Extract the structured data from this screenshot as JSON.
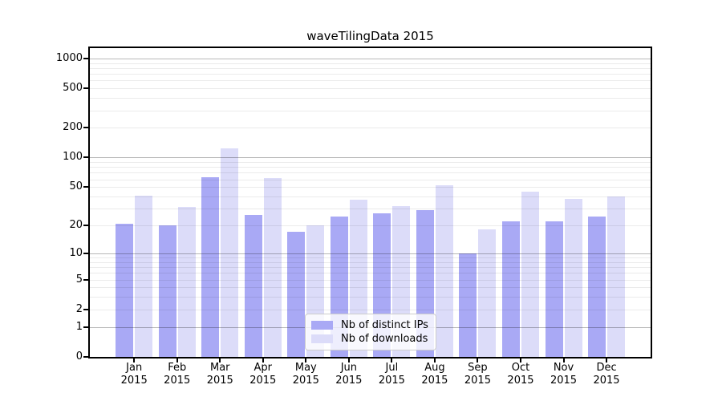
{
  "chart_data": {
    "type": "bar",
    "title": "waveTilingData 2015",
    "categories": [
      "Jan",
      "Feb",
      "Mar",
      "Apr",
      "May",
      "Jun",
      "Jul",
      "Aug",
      "Sep",
      "Oct",
      "Nov",
      "Dec"
    ],
    "year_label": "2015",
    "series": [
      {
        "name": "Nb of distinct IPs",
        "color": "#a9a9f5",
        "values": [
          21,
          20,
          63,
          26,
          17,
          25,
          27,
          29,
          10,
          22,
          22,
          25
        ]
      },
      {
        "name": "Nb of downloads",
        "color": "#dcdcf9",
        "values": [
          41,
          31,
          125,
          62,
          20,
          37,
          32,
          52,
          18,
          45,
          38,
          40
        ]
      }
    ],
    "yscale": "log10(1+x)",
    "ylim": [
      0,
      1270
    ],
    "y_ticks": [
      0,
      1,
      2,
      5,
      10,
      20,
      50,
      100,
      200,
      500,
      1000
    ],
    "major_gridlines": [
      1,
      10,
      100,
      1000
    ],
    "minor_gridlines": [
      2,
      3,
      4,
      5,
      6,
      7,
      8,
      9,
      20,
      30,
      40,
      50,
      60,
      70,
      80,
      90,
      200,
      300,
      400,
      500,
      600,
      700,
      800,
      900
    ],
    "grid": "on",
    "legend": {
      "location": "lower center",
      "entries": [
        "Nb of distinct IPs",
        "Nb of downloads"
      ]
    },
    "colors": {
      "bar_distinct_ips": "#a9a9f5",
      "bar_downloads": "#dcdcf9",
      "axis": "#000000",
      "major_grid": "#b5b5b5",
      "minor_grid": "#ebebeb",
      "background": "#ffffff"
    }
  }
}
